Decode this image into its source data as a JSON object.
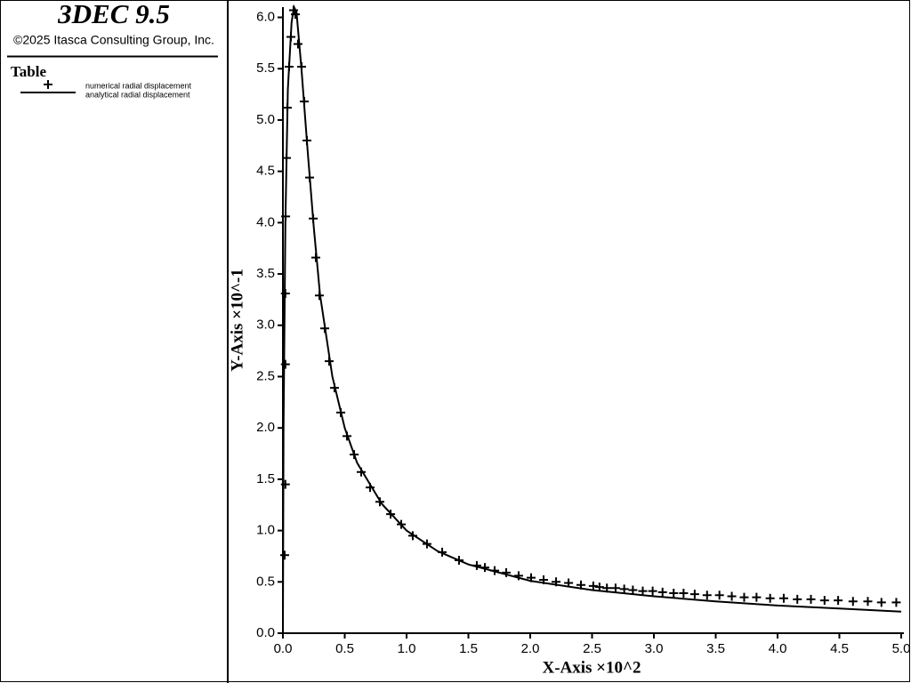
{
  "chart_data": {
    "type": "line",
    "title": "3DEC 9.5",
    "subtitle": "©2025 Itasca Consulting Group, Inc.",
    "legend_title": "Table",
    "x_label": "X-Axis ×10^2",
    "y_label": "Y-Axis ×10^-1",
    "xlim": [
      0,
      5.0
    ],
    "ylim": [
      0,
      6.1
    ],
    "xticks": [
      {
        "value": 0,
        "label": "0.0"
      },
      0.5,
      {
        "value": 1,
        "label": "1.0"
      },
      1.5,
      {
        "value": 2,
        "label": "2.0"
      },
      2.5,
      {
        "value": 3,
        "label": "3.0"
      },
      3.5,
      {
        "value": 4,
        "label": "4.0"
      },
      4.5,
      {
        "value": 5,
        "label": "5.0"
      }
    ],
    "yticks": [
      {
        "value": 0,
        "label": "0.0"
      },
      0.5,
      {
        "value": 1,
        "label": "1.0"
      },
      1.5,
      {
        "value": 2,
        "label": "2.0"
      },
      2.5,
      {
        "value": 3,
        "label": "3.0"
      },
      3.5,
      {
        "value": 4,
        "label": "4.0"
      },
      4.5,
      {
        "value": 5,
        "label": "5.0"
      },
      5.5,
      {
        "value": 6,
        "label": "6.0"
      }
    ],
    "series": [
      {
        "name": "numerical radial displacement",
        "color": "#000000",
        "style": "marker",
        "x": [
          0.014,
          0.02,
          0.02,
          0.02,
          0.022,
          0.029,
          0.036,
          0.05,
          0.065,
          0.086,
          0.101,
          0.122,
          0.151,
          0.173,
          0.194,
          0.216,
          0.245,
          0.266,
          0.295,
          0.338,
          0.374,
          0.417,
          0.468,
          0.518,
          0.576,
          0.633,
          0.705,
          0.784,
          0.871,
          0.957,
          1.05,
          1.165,
          1.288,
          1.424,
          1.568,
          1.633,
          1.712,
          1.806,
          1.906,
          2.007,
          2.108,
          2.209,
          2.31,
          2.41,
          2.51,
          2.56,
          2.62,
          2.69,
          2.76,
          2.83,
          2.91,
          2.99,
          3.07,
          3.16,
          3.24,
          3.33,
          3.43,
          3.53,
          3.63,
          3.73,
          3.83,
          3.94,
          4.05,
          4.16,
          4.27,
          4.38,
          4.49,
          4.61,
          4.73,
          4.84,
          4.96
        ],
        "values": [
          0.76,
          1.45,
          2.62,
          3.31,
          4.06,
          4.63,
          5.12,
          5.52,
          5.81,
          6.07,
          6.03,
          5.74,
          5.52,
          5.18,
          4.8,
          4.44,
          4.04,
          3.66,
          3.29,
          2.97,
          2.65,
          2.39,
          2.15,
          1.92,
          1.74,
          1.57,
          1.42,
          1.28,
          1.16,
          1.06,
          0.95,
          0.87,
          0.79,
          0.71,
          0.66,
          0.64,
          0.61,
          0.59,
          0.56,
          0.54,
          0.52,
          0.5,
          0.49,
          0.47,
          0.46,
          0.45,
          0.44,
          0.44,
          0.43,
          0.42,
          0.41,
          0.41,
          0.4,
          0.39,
          0.39,
          0.38,
          0.37,
          0.37,
          0.36,
          0.35,
          0.35,
          0.34,
          0.34,
          0.33,
          0.33,
          0.32,
          0.32,
          0.31,
          0.31,
          0.3,
          0.3
        ]
      },
      {
        "name": "analytical radial displacement",
        "color": "#000000",
        "style": "line",
        "x": [
          0,
          0.005,
          0.02,
          0.04,
          0.07,
          0.09,
          0.11,
          0.15,
          0.2,
          0.25,
          0.3,
          0.4,
          0.5,
          0.6,
          0.8,
          1.0,
          1.25,
          1.5,
          2.0,
          2.5,
          3.0,
          3.5,
          4.0,
          4.5,
          5.0
        ],
        "values": [
          0,
          2.0,
          4.0,
          5.3,
          5.95,
          6.1,
          6.05,
          5.5,
          4.7,
          3.95,
          3.3,
          2.5,
          2.0,
          1.66,
          1.26,
          1.0,
          0.8,
          0.67,
          0.51,
          0.42,
          0.36,
          0.31,
          0.27,
          0.24,
          0.21
        ]
      }
    ]
  }
}
